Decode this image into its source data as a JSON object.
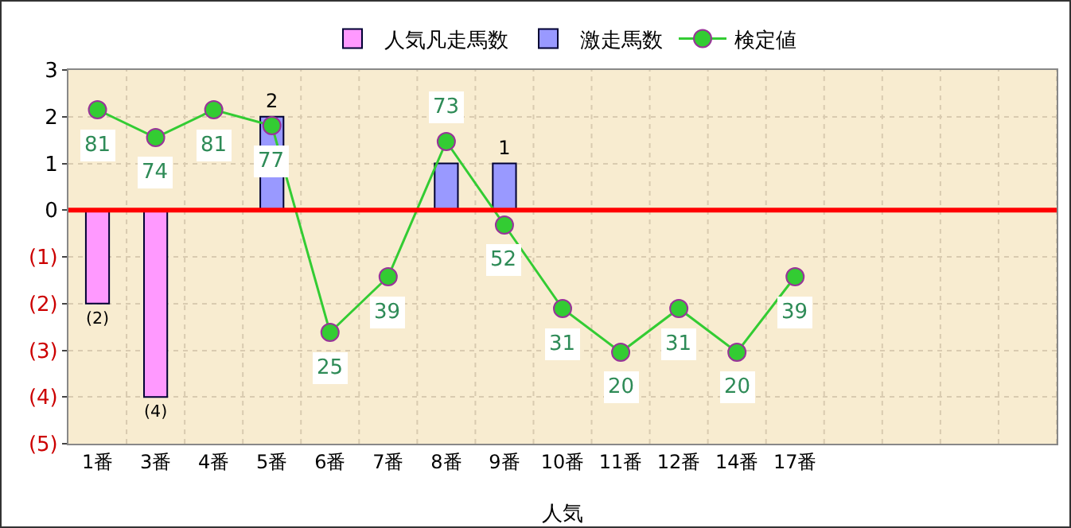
{
  "chart_data": {
    "type": "bar",
    "xlabel": "人気",
    "categories": [
      "1番",
      "3番",
      "4番",
      "5番",
      "6番",
      "7番",
      "8番",
      "9番",
      "10番",
      "11番",
      "12番",
      "14番",
      "17番",
      null,
      null,
      null,
      null
    ],
    "series": [
      {
        "name": "人気凡走馬数",
        "color": "#ff99ff",
        "values": [
          -2,
          -4,
          null,
          null,
          null,
          null,
          null,
          null,
          null,
          null,
          null,
          null,
          null,
          null,
          null,
          null,
          null
        ],
        "value_labels": [
          "(2)",
          "(4)",
          null,
          null,
          null,
          null,
          null,
          null,
          null,
          null,
          null,
          null,
          null,
          null,
          null,
          null,
          null
        ]
      },
      {
        "name": "激走馬数",
        "color": "#9999ff",
        "values": [
          null,
          null,
          null,
          2,
          null,
          null,
          1,
          1,
          null,
          null,
          null,
          null,
          null,
          null,
          null,
          null,
          null
        ],
        "value_labels": [
          null,
          null,
          null,
          "2",
          null,
          null,
          null,
          "1",
          null,
          null,
          null,
          null,
          null,
          null,
          null,
          null,
          null
        ]
      },
      {
        "name": "検定値",
        "type": "line",
        "axis": "y2",
        "color": "#33cc33",
        "values": [
          81,
          74,
          81,
          77,
          25,
          39,
          73,
          52,
          31,
          20,
          31,
          20,
          39,
          null,
          null,
          null,
          null
        ],
        "value_labels": [
          "81",
          "74",
          "81",
          "77",
          "25",
          "39",
          "73",
          "52",
          "31",
          "20",
          "31",
          "20",
          "39",
          null,
          null,
          null,
          null
        ]
      }
    ],
    "ylim": [
      -5,
      3
    ],
    "yticks": [
      3,
      2,
      1,
      0,
      {
        "value": -1,
        "label": "(1)"
      },
      {
        "value": -2,
        "label": "(2)"
      },
      {
        "value": -3,
        "label": "(3)"
      },
      {
        "value": -4,
        "label": "(4)"
      },
      {
        "value": -5,
        "label": "(5)"
      }
    ],
    "y2lim": [
      -3,
      91
    ],
    "tick_labels": "xy",
    "ref_lines": [
      {
        "axis": "y",
        "value": 0,
        "color": "#ff0000"
      }
    ],
    "grid": true,
    "legend": "top",
    "marker": "circle",
    "line_style": "solid"
  }
}
